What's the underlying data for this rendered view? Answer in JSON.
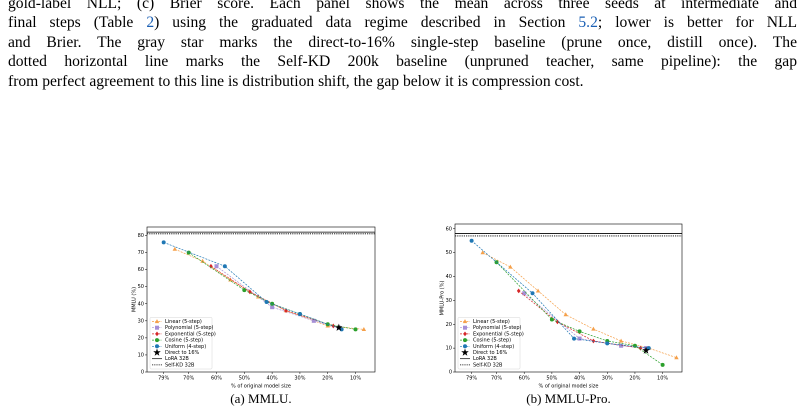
{
  "paragraph": [
    [
      "gold-label NLL; (c) Brier score. Each panel shows the mean across three seeds at intermediate and"
    ],
    [
      "final steps (Table ",
      "2",
      ") using the graduated data regime described in Section ",
      "5.2",
      "; lower is better for NLL"
    ],
    [
      "and Brier. The gray star marks the direct-to-16% single-step baseline (prune once, distill once). The"
    ],
    [
      "dotted horizontal line marks the Self-KD 200k baseline (unpruned teacher, same pipeline): the gap"
    ],
    [
      "from perfect agreement to this line is distribution shift, the gap below it is compression cost."
    ]
  ],
  "chart_data": [
    {
      "type": "line",
      "caption": "(a) MMLU.",
      "xlabel": "% of original model size",
      "ylabel": "MMLU (%)",
      "xlim": [
        85,
        3
      ],
      "xticks": [
        {
          "value": 79,
          "label": "79%"
        },
        {
          "value": 70,
          "label": "70%"
        },
        {
          "value": 60,
          "label": "60%"
        },
        {
          "value": 50,
          "label": "50%"
        },
        {
          "value": 40,
          "label": "40%"
        },
        {
          "value": 30,
          "label": "30%"
        },
        {
          "value": 20,
          "label": "20%"
        },
        {
          "value": 10,
          "label": "10%"
        }
      ],
      "ylim": [
        0,
        85
      ],
      "yticks": [
        0,
        10,
        20,
        30,
        40,
        50,
        60,
        70,
        80
      ],
      "legend": "lower left",
      "series": [
        {
          "name": "Linear (5-step)",
          "color": "#f5a04a",
          "marker": "triangle",
          "x": [
            75,
            65,
            55,
            45,
            35,
            25,
            20,
            7
          ],
          "values": [
            72,
            65,
            54,
            44,
            36,
            30,
            27,
            25
          ]
        },
        {
          "name": "Polynomial (5-step)",
          "color": "#a58fd6",
          "marker": "square",
          "x": [
            60,
            40,
            25,
            16
          ],
          "values": [
            62,
            38,
            30,
            26
          ]
        },
        {
          "name": "Exponential (5-step)",
          "color": "#d62728",
          "marker": "diamond",
          "x": [
            62,
            48,
            35,
            18
          ],
          "values": [
            62,
            47,
            36,
            27
          ]
        },
        {
          "name": "Cosine (5-step)",
          "color": "#2ca02c",
          "marker": "circle",
          "x": [
            70,
            50,
            40,
            30,
            20,
            10
          ],
          "values": [
            70,
            48,
            40,
            34,
            28,
            25
          ]
        },
        {
          "name": "Uniform (4-step)",
          "color": "#1f77b4",
          "marker": "circle",
          "x": [
            79,
            57,
            42,
            30,
            15
          ],
          "values": [
            76,
            62,
            41,
            34,
            25
          ]
        },
        {
          "name": "Direct to 16%",
          "color": "#000000",
          "marker": "star",
          "x": [
            16
          ],
          "values": [
            26
          ]
        }
      ],
      "hlines": [
        {
          "name": "LoRA 32B",
          "style": "solid",
          "value": 82
        },
        {
          "name": "Self-KD 32B",
          "style": "dotted",
          "value": 81
        }
      ]
    },
    {
      "type": "line",
      "caption": "(b) MMLU-Pro.",
      "xlabel": "% of original model size",
      "ylabel": "MMLU-Pro (%)",
      "xlim": [
        85,
        3
      ],
      "xticks": [
        {
          "value": 79,
          "label": "79%"
        },
        {
          "value": 70,
          "label": "70%"
        },
        {
          "value": 60,
          "label": "60%"
        },
        {
          "value": 50,
          "label": "50%"
        },
        {
          "value": 40,
          "label": "40%"
        },
        {
          "value": 30,
          "label": "30%"
        },
        {
          "value": 20,
          "label": "20%"
        },
        {
          "value": 10,
          "label": "10%"
        }
      ],
      "ylim": [
        0,
        62
      ],
      "yticks": [
        0,
        10,
        20,
        30,
        40,
        50,
        60
      ],
      "legend": "lower left",
      "series": [
        {
          "name": "Linear (5-step)",
          "color": "#f5a04a",
          "marker": "triangle",
          "x": [
            75,
            65,
            55,
            45,
            35,
            25,
            15,
            5
          ],
          "values": [
            50,
            44,
            34,
            24,
            18,
            13,
            10,
            6
          ]
        },
        {
          "name": "Polynomial (5-step)",
          "color": "#a58fd6",
          "marker": "square",
          "x": [
            60,
            40,
            25,
            16
          ],
          "values": [
            33,
            14,
            11,
            10
          ]
        },
        {
          "name": "Exponential (5-step)",
          "color": "#d62728",
          "marker": "diamond",
          "x": [
            62,
            48,
            35,
            18
          ],
          "values": [
            34,
            21,
            13,
            10
          ]
        },
        {
          "name": "Cosine (5-step)",
          "color": "#2ca02c",
          "marker": "circle",
          "x": [
            70,
            50,
            40,
            30,
            20,
            10
          ],
          "values": [
            46,
            22,
            17,
            13,
            11,
            3
          ]
        },
        {
          "name": "Uniform (4-step)",
          "color": "#1f77b4",
          "marker": "circle",
          "x": [
            79,
            57,
            42,
            30,
            15
          ],
          "values": [
            55,
            33,
            14,
            12,
            10
          ]
        },
        {
          "name": "Direct to 16%",
          "color": "#000000",
          "marker": "star",
          "x": [
            16
          ],
          "values": [
            9
          ]
        }
      ],
      "hlines": [
        {
          "name": "LoRA 32B",
          "style": "solid",
          "value": 58
        },
        {
          "name": "Self-KD 32B",
          "style": "dotted",
          "value": 57
        }
      ]
    }
  ]
}
